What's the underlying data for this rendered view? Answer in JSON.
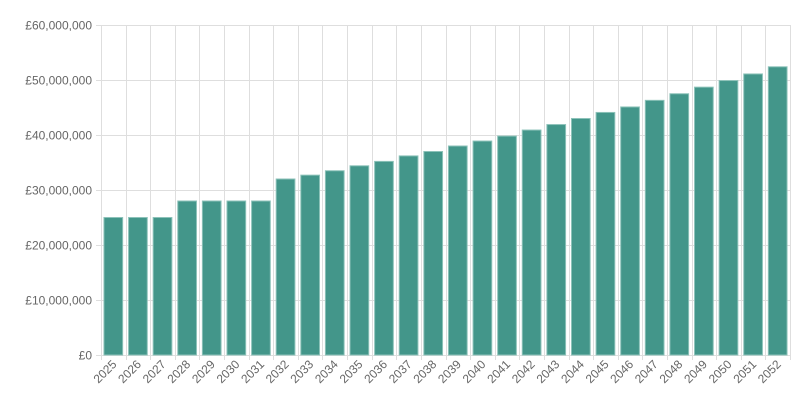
{
  "chart_data": {
    "type": "bar",
    "title": "",
    "xlabel": "",
    "ylabel": "",
    "ylim": [
      0,
      60000000
    ],
    "yticks": [
      0,
      10000000,
      20000000,
      30000000,
      40000000,
      50000000,
      60000000
    ],
    "ytick_labels": [
      "£0",
      "£10,000,000",
      "£20,000,000",
      "£30,000,000",
      "£40,000,000",
      "£50,000,000",
      "£60,000,000"
    ],
    "grid": true,
    "bar_color": "#43968a",
    "categories": [
      "2025",
      "2026",
      "2027",
      "2028",
      "2029",
      "2030",
      "2031",
      "2032",
      "2033",
      "2034",
      "2035",
      "2036",
      "2037",
      "2038",
      "2039",
      "2040",
      "2041",
      "2042",
      "2043",
      "2044",
      "2045",
      "2046",
      "2047",
      "2048",
      "2049",
      "2050",
      "2051",
      "2052"
    ],
    "values": [
      25000000,
      25000000,
      25000000,
      28000000,
      28000000,
      28000000,
      28000000,
      32000000,
      32700000,
      33500000,
      34400000,
      35200000,
      36200000,
      37000000,
      38000000,
      38900000,
      39800000,
      40900000,
      41900000,
      43000000,
      44100000,
      45100000,
      46300000,
      47500000,
      48700000,
      49900000,
      51100000,
      52400000
    ]
  }
}
